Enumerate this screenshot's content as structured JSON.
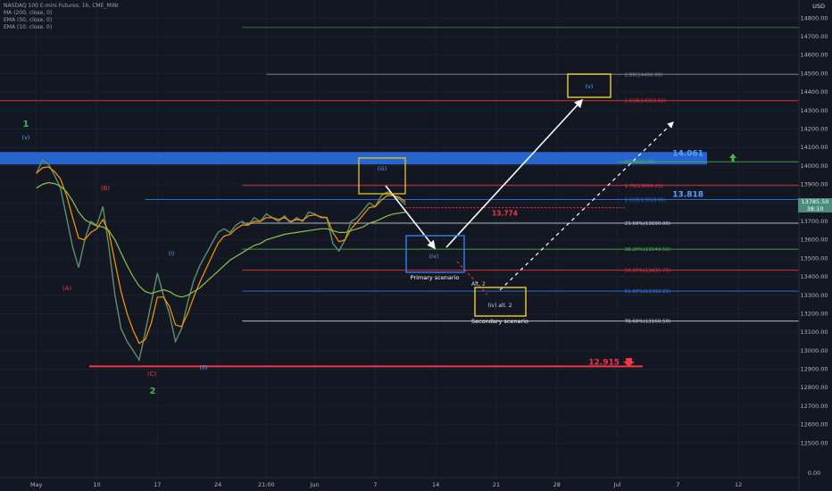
{
  "legend": {
    "title": "NASDAQ 100 E-mini Futures, 1h, CME_MINI",
    "ma200": "MA (200, close, 0)",
    "ema50": "EMA (50, close, 0)",
    "ema10": "EMA (10, close, 0)"
  },
  "price_axis": {
    "currency": "USD",
    "last_price": "13785.50",
    "countdown": "38:10",
    "bottom_label": "0.00"
  },
  "colors": {
    "background": "#131722",
    "resistance_band": "#2a6ee0",
    "primary_path": "#ffffff",
    "highlight_box": "#e5c32a",
    "blue_box": "#2f7ae5",
    "support_red": "#f23645",
    "wave_green": "#4caf50",
    "ema_orange": "#ff9800",
    "ema_green": "#8bc34a"
  },
  "chart_data": {
    "type": "line",
    "title": "NASDAQ 100 E-mini Futures, 1h, CME_MINI",
    "ylim": [
      12400,
      14850
    ],
    "y_ticks": [
      "14800.00",
      "14700.00",
      "14600.00",
      "14500.00",
      "14400.00",
      "14300.00",
      "14200.00",
      "14100.00",
      "14000.00",
      "13900.00",
      "13800.00",
      "13700.00",
      "13600.00",
      "13500.00",
      "13400.00",
      "13300.00",
      "13200.00",
      "13100.00",
      "13000.00",
      "12900.00",
      "12800.00",
      "12700.00",
      "12600.00",
      "12500.00"
    ],
    "x_ticks": [
      "May",
      "10",
      "17",
      "24",
      "21:00",
      "Jun",
      "7",
      "14",
      "21",
      "28",
      "Jul",
      "7",
      "12"
    ],
    "x_tick_index": [
      0,
      10,
      20,
      30,
      38,
      46,
      56,
      66,
      76,
      86,
      96,
      106,
      116
    ],
    "x_range": [
      -6,
      126
    ],
    "x_data_end": 61,
    "series": [
      {
        "values": [
          13960,
          14030,
          14010,
          13950,
          13880,
          13720,
          13560,
          13450,
          13600,
          13700,
          13680,
          13780,
          13560,
          13300,
          13120,
          13050,
          13000,
          12950,
          13100,
          13260,
          13420,
          13300,
          13200,
          13050,
          13120,
          13260,
          13380,
          13460,
          13520,
          13580,
          13640,
          13660,
          13640,
          13680,
          13700,
          13680,
          13720,
          13700,
          13740,
          13720,
          13700,
          13730,
          13690,
          13720,
          13700,
          13750,
          13740,
          13720,
          13720,
          13580,
          13540,
          13600,
          13700,
          13720,
          13760,
          13800,
          13780,
          13840,
          13860,
          13840,
          13820,
          13790
        ]
      },
      {
        "values": [
          13960,
          13990,
          13995,
          13970,
          13930,
          13840,
          13720,
          13610,
          13600,
          13640,
          13660,
          13710,
          13640,
          13480,
          13320,
          13200,
          13110,
          13040,
          13060,
          13150,
          13290,
          13290,
          13240,
          13140,
          13130,
          13200,
          13290,
          13370,
          13440,
          13510,
          13580,
          13620,
          13630,
          13660,
          13680,
          13680,
          13700,
          13700,
          13720,
          13720,
          13710,
          13720,
          13700,
          13710,
          13705,
          13730,
          13735,
          13725,
          13720,
          13640,
          13590,
          13600,
          13660,
          13695,
          13735,
          13775,
          13780,
          13815,
          13840,
          13840,
          13830,
          13805
        ]
      },
      {
        "values": [
          13880,
          13900,
          13910,
          13905,
          13890,
          13860,
          13810,
          13750,
          13710,
          13690,
          13675,
          13670,
          13650,
          13600,
          13530,
          13460,
          13400,
          13350,
          13320,
          13310,
          13320,
          13330,
          13320,
          13300,
          13290,
          13300,
          13320,
          13340,
          13370,
          13400,
          13430,
          13460,
          13490,
          13510,
          13530,
          13550,
          13570,
          13580,
          13600,
          13610,
          13620,
          13630,
          13635,
          13640,
          13645,
          13650,
          13655,
          13660,
          13660,
          13650,
          13640,
          13640,
          13650,
          13660,
          13670,
          13690,
          13700,
          13715,
          13730,
          13740,
          13745,
          13750
        ]
      }
    ],
    "resistance_zone": [
      14022.75,
      14061
    ],
    "levels": [
      {
        "price": 14496,
        "label": "2.88(14496.00)",
        "x_start": 38,
        "color": "#8a8e99"
      },
      {
        "price": 14353.5,
        "label": "2.618(14353.50)",
        "x_start": -6,
        "color": "#f23645"
      },
      {
        "price": 14022.75,
        "label": "2(14022.75)",
        "x_start": 96,
        "color": "#4caf50"
      },
      {
        "price": 13894.25,
        "label": "1.78(13894.25)",
        "x_start": 34,
        "color": "#f23645"
      },
      {
        "price": 13818,
        "label": "1.618(13818.00)",
        "x_start": 18,
        "color": "#2f7ae5"
      },
      {
        "price": 13690,
        "label": "23.60%(13690.00)",
        "x_start": 34,
        "color": "#d1d4dc"
      },
      {
        "price": 13549.5,
        "label": "38.20%(13549.50)",
        "x_start": 34,
        "color": "#4caf50"
      },
      {
        "price": 13435.75,
        "label": "50.00%(13435.75)",
        "x_start": 34,
        "color": "#f23645"
      },
      {
        "price": 13322.25,
        "label": "61.80%(13322.25)",
        "x_start": 34,
        "color": "#2f7ae5"
      },
      {
        "price": 13160.5,
        "label": "78.60%(13160.50)",
        "x_start": 34,
        "color": "#d1d4dc"
      }
    ],
    "annotations": {
      "resistance_value": "14.061",
      "level_13818": "13.818",
      "level_13774": "13.774",
      "support_value": "12.915",
      "wave_1": "1",
      "wave_2": "2",
      "wave_v_top": "(v)",
      "wave_A": "(A)",
      "wave_B": "(B)",
      "wave_C": "(C)",
      "wave_i": "(i)",
      "wave_ii": "(ii)",
      "wave_iii": "(iii)",
      "wave_iv": "(iv)",
      "wave_v_target": "(v)",
      "wave_iv_alt": "(iv) alt. 2",
      "primary_label": "Primary scenario",
      "secondary_label": "Secondary scenario",
      "alt_label": "Alt. 2"
    }
  }
}
